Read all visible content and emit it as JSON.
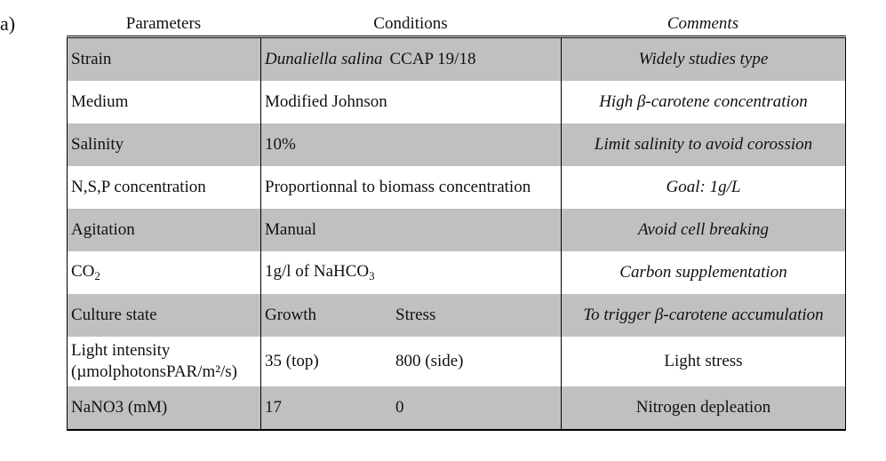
{
  "label": "a)",
  "header": [
    "Parameters",
    "Conditions",
    "Comments"
  ],
  "rows": [
    {
      "parameter": [
        "Strain"
      ],
      "condition": [
        "Dunaliella salina",
        "CCAP 19/18"
      ],
      "comment": "Widely studies type"
    },
    {
      "parameter": [
        "Medium"
      ],
      "condition": [
        "Modified Johnson"
      ],
      "comment": "High β-carotene concentration"
    },
    {
      "parameter": [
        "Salinity"
      ],
      "condition": [
        "10%"
      ],
      "comment": "Limit salinity to avoid corossion"
    },
    {
      "parameter": [
        "N,S,P concentration"
      ],
      "condition": [
        "Proportionnal to biomass concentration"
      ],
      "comment": "Goal: 1g/L"
    },
    {
      "parameter": [
        "Agitation"
      ],
      "condition": [
        "Manual"
      ],
      "comment": "Avoid cell breaking"
    },
    {
      "parameter": [
        "CO",
        "2"
      ],
      "condition": [
        "1g/l of NaHCO",
        "3"
      ],
      "comment": "Carbon supplementation"
    },
    {
      "parameter": [
        "Culture state"
      ],
      "condition": [
        "Growth",
        "Stress"
      ],
      "comment": "To trigger β-carotene accumulation"
    },
    {
      "parameter": [
        "Light intensity",
        "(µmolphotonsPAR/m²/s)"
      ],
      "condition": [
        "35 (top)",
        "800 (side)"
      ],
      "comment": "Light stress"
    },
    {
      "parameter": [
        "NaNO3 (mM)"
      ],
      "condition": [
        "17",
        "0"
      ],
      "comment": "Nitrogen depleation"
    }
  ]
}
